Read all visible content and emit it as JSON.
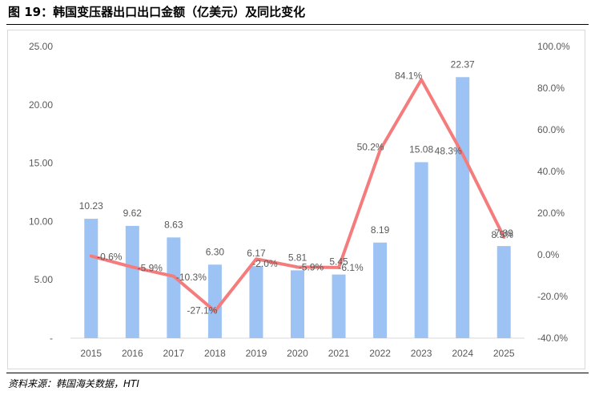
{
  "figure": {
    "title": "图 19：韩国变压器出口出口金额（亿美元）及同比变化",
    "source": "资料来源：韩国海关数据，HTI"
  },
  "chart_data": {
    "type": "bar+line",
    "categories": [
      "2015",
      "2016",
      "2017",
      "2018",
      "2019",
      "2020",
      "2021",
      "2022",
      "2023",
      "2024",
      "2025"
    ],
    "series": [
      {
        "name": "出口金额（亿美元）",
        "type": "bar",
        "axis": "left",
        "values": [
          10.23,
          9.62,
          8.63,
          6.3,
          6.17,
          5.81,
          5.45,
          8.19,
          15.08,
          22.37,
          7.89
        ],
        "labels": [
          "10.23",
          "9.62",
          "8.63",
          "6.30",
          "6.17",
          "5.81",
          "5.45",
          "8.19",
          "15.08",
          "22.37",
          "7.89"
        ],
        "color": "#9dc3f5"
      },
      {
        "name": "同比变化",
        "type": "line",
        "axis": "right",
        "values": [
          -0.6,
          -5.9,
          -10.3,
          -27.1,
          -2.0,
          -5.9,
          -6.1,
          50.2,
          84.1,
          48.3,
          8.5
        ],
        "labels": [
          "-0.6%",
          "-5.9%",
          "-10.3%",
          "-27.1%",
          "-2.0%",
          "-5.9%",
          "-6.1%",
          "50.2%",
          "84.1%",
          "48.3%",
          "8.5%"
        ],
        "color": "#f47c7c"
      }
    ],
    "left_axis": {
      "min": 0,
      "max": 25,
      "ticks": [
        0,
        5,
        10,
        15,
        20,
        25
      ],
      "tick_labels": [
        "-",
        "5.00",
        "10.00",
        "15.00",
        "20.00",
        "25.00"
      ]
    },
    "right_axis": {
      "min": -40,
      "max": 100,
      "ticks": [
        -40,
        -20,
        0,
        20,
        40,
        60,
        80,
        100
      ],
      "tick_labels": [
        "-40.0%",
        "-20.0%",
        "0.0%",
        "20.0%",
        "40.0%",
        "60.0%",
        "80.0%",
        "100.0%"
      ]
    },
    "grid": false,
    "legend": "none",
    "text_color": "#595959"
  }
}
